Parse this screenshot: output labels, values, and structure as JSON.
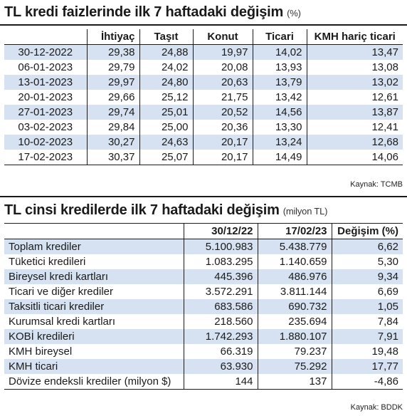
{
  "table1": {
    "title": "TL kredi faizlerinde ilk 7 haftadaki değişim",
    "unit": "(%)",
    "headers": [
      "",
      "İhtiyaç",
      "Taşıt",
      "Konut",
      "Ticari",
      "KMH hariç ticari"
    ],
    "rows": [
      [
        "30-12-2022",
        "29,38",
        "24,88",
        "19,97",
        "14,02",
        "13,47"
      ],
      [
        "06-01-2023",
        "29,79",
        "24,02",
        "20,08",
        "13,93",
        "13,08"
      ],
      [
        "13-01-2023",
        "29,97",
        "24,80",
        "20,63",
        "13,79",
        "13,02"
      ],
      [
        "20-01-2023",
        "29,66",
        "25,12",
        "21,75",
        "13,42",
        "12,61"
      ],
      [
        "27-01-2023",
        "29,74",
        "25,01",
        "20,52",
        "14,56",
        "13,87"
      ],
      [
        "03-02-2023",
        "29,84",
        "25,00",
        "20,36",
        "13,30",
        "12,41"
      ],
      [
        "10-02-2023",
        "30,27",
        "24,63",
        "20,17",
        "13,24",
        "12,68"
      ],
      [
        "17-02-2023",
        "30,37",
        "25,07",
        "20,17",
        "14,49",
        "14,06"
      ]
    ],
    "source": "Kaynak: TCMB"
  },
  "table2": {
    "title": "TL cinsi kredilerde ilk 7 haftadaki değişim",
    "unit": "(milyon TL)",
    "headers": [
      "",
      "30/12/22",
      "17/02/23",
      "Değişim (%)"
    ],
    "rows": [
      [
        "Toplam krediler",
        "5.100.983",
        "5.438.779",
        "6,62"
      ],
      [
        "Tüketici kredileri",
        "1.083.295",
        "1.140.659",
        "5,30"
      ],
      [
        "Bireysel kredi kartları",
        "445.396",
        "486.976",
        "9,34"
      ],
      [
        "Ticari ve diğer krediler",
        "3.572.291",
        "3.811.144",
        "6,69"
      ],
      [
        "Taksitli ticari krediler",
        "683.586",
        "690.732",
        "1,05"
      ],
      [
        "Kurumsal kredi kartları",
        "218.560",
        "235.694",
        "7,84"
      ],
      [
        "KOBİ kredileri",
        "1.742.293",
        "1.880.107",
        "7,91"
      ],
      [
        "KMH bireysel",
        "66.319",
        "79.237",
        "19,48"
      ],
      [
        "KMH ticari",
        "63.930",
        "75.292",
        "17,77"
      ],
      [
        "Dövize endeksli krediler (milyon $)",
        "144",
        "137",
        "-4,86"
      ]
    ],
    "source": "Kaynak: BDDK"
  }
}
